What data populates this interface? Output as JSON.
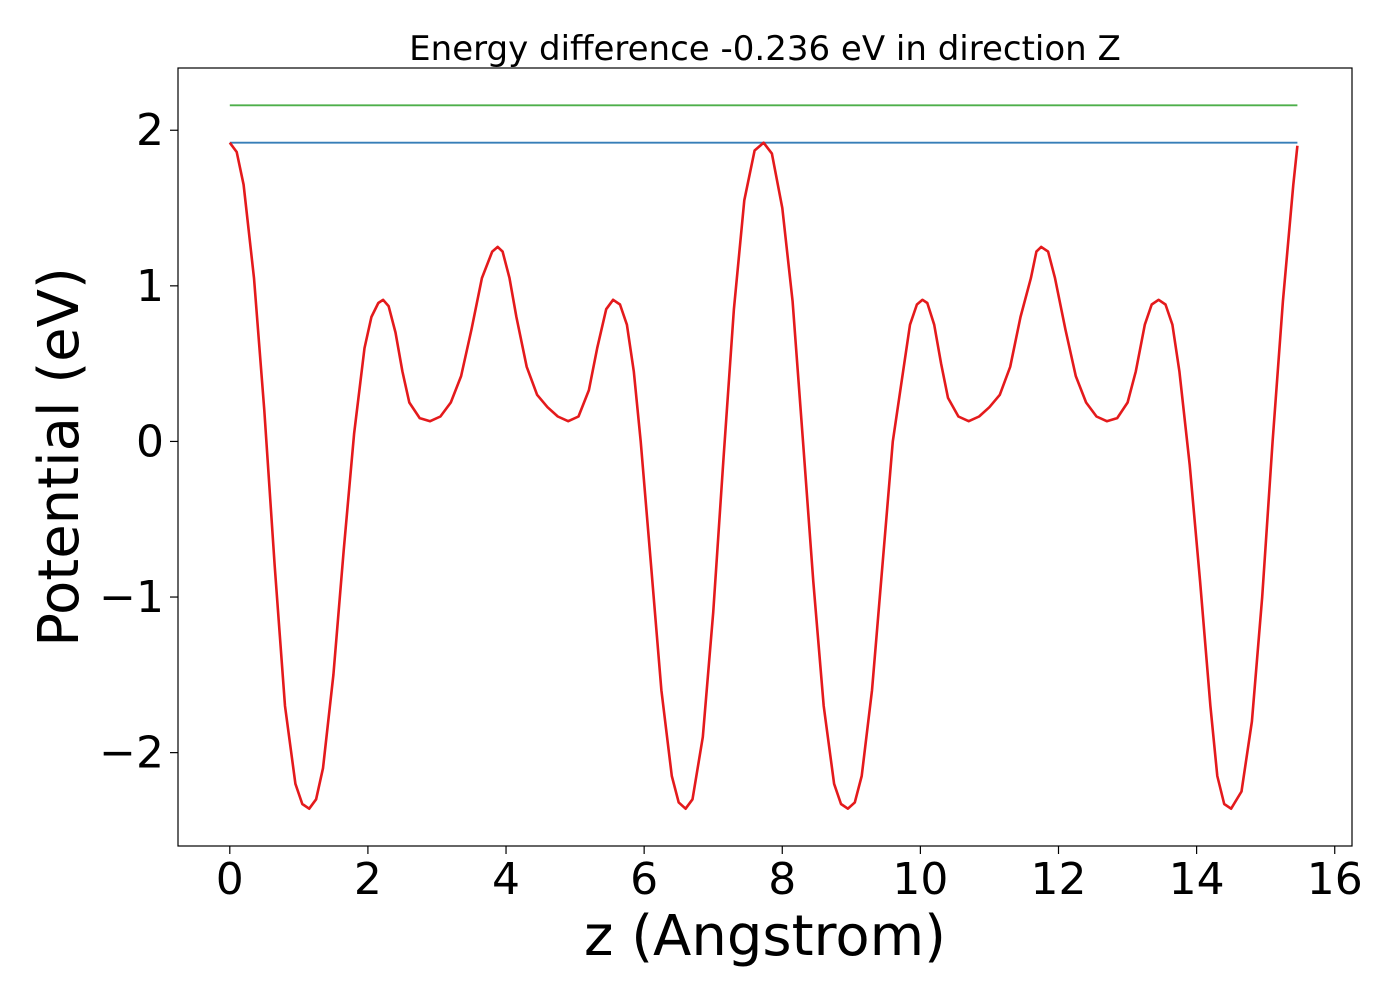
{
  "chart_data": {
    "type": "line",
    "title": "Energy difference -0.236 eV in direction Z",
    "xlabel": "z (Angstrom)",
    "ylabel": "Potential (eV)",
    "xlim": [
      -0.75,
      16.25
    ],
    "ylim": [
      -2.6,
      2.4
    ],
    "xticks": [
      0,
      2,
      4,
      6,
      8,
      10,
      12,
      14,
      16
    ],
    "xtick_labels": [
      "0",
      "2",
      "4",
      "6",
      "8",
      "10",
      "12",
      "14",
      "16"
    ],
    "yticks": [
      -2,
      -1,
      0,
      1,
      2
    ],
    "ytick_labels": [
      "−2",
      "−1",
      "0",
      "1",
      "2"
    ],
    "grid": false,
    "series": [
      {
        "color": "#4daf4a",
        "x": [
          0,
          15.46
        ],
        "y": [
          2.16,
          2.16
        ]
      },
      {
        "color": "#377eb8",
        "x": [
          0,
          15.46
        ],
        "y": [
          1.92,
          1.92
        ]
      },
      {
        "color": "#e41a1c",
        "x": [
          0.0,
          0.1,
          0.2,
          0.35,
          0.5,
          0.65,
          0.8,
          0.95,
          1.05,
          1.15,
          1.25,
          1.35,
          1.5,
          1.65,
          1.8,
          1.95,
          2.05,
          2.15,
          2.22,
          2.3,
          2.4,
          2.5,
          2.6,
          2.75,
          2.9,
          3.05,
          3.2,
          3.35,
          3.5,
          3.65,
          3.8,
          3.88,
          3.95,
          4.05,
          4.15,
          4.3,
          4.45,
          4.6,
          4.75,
          4.9,
          5.05,
          5.2,
          5.32,
          5.45,
          5.55,
          5.65,
          5.75,
          5.85,
          5.95,
          6.1,
          6.25,
          6.4,
          6.5,
          6.6,
          6.7,
          6.85,
          7.0,
          7.15,
          7.3,
          7.45,
          7.6,
          7.73,
          7.85,
          8.0,
          8.15,
          8.3,
          8.45,
          8.6,
          8.75,
          8.85,
          8.95,
          9.05,
          9.15,
          9.3,
          9.45,
          9.6,
          9.75,
          9.85,
          9.95,
          10.03,
          10.1,
          10.2,
          10.3,
          10.4,
          10.55,
          10.7,
          10.85,
          11.0,
          11.15,
          11.3,
          11.45,
          11.6,
          11.68,
          11.75,
          11.85,
          11.95,
          12.1,
          12.25,
          12.4,
          12.55,
          12.7,
          12.85,
          13.0,
          13.12,
          13.25,
          13.35,
          13.45,
          13.55,
          13.65,
          13.75,
          13.9,
          14.05,
          14.2,
          14.3,
          14.4,
          14.5,
          14.65,
          14.8,
          14.95,
          15.1,
          15.25,
          15.4,
          15.46
        ],
        "y": [
          1.92,
          1.86,
          1.65,
          1.05,
          0.2,
          -0.8,
          -1.7,
          -2.2,
          -2.33,
          -2.36,
          -2.3,
          -2.1,
          -1.5,
          -0.7,
          0.05,
          0.6,
          0.8,
          0.89,
          0.91,
          0.87,
          0.7,
          0.45,
          0.25,
          0.15,
          0.13,
          0.16,
          0.25,
          0.42,
          0.72,
          1.05,
          1.22,
          1.25,
          1.22,
          1.05,
          0.8,
          0.48,
          0.3,
          0.22,
          0.16,
          0.13,
          0.16,
          0.33,
          0.6,
          0.85,
          0.91,
          0.88,
          0.75,
          0.45,
          0.0,
          -0.8,
          -1.6,
          -2.15,
          -2.32,
          -2.36,
          -2.3,
          -1.9,
          -1.1,
          -0.1,
          0.85,
          1.55,
          1.87,
          1.92,
          1.85,
          1.5,
          0.9,
          0.0,
          -0.9,
          -1.7,
          -2.2,
          -2.33,
          -2.36,
          -2.32,
          -2.15,
          -1.6,
          -0.8,
          0.0,
          0.45,
          0.75,
          0.88,
          0.91,
          0.89,
          0.75,
          0.5,
          0.28,
          0.16,
          0.13,
          0.16,
          0.22,
          0.3,
          0.48,
          0.8,
          1.05,
          1.22,
          1.25,
          1.22,
          1.05,
          0.72,
          0.42,
          0.25,
          0.16,
          0.13,
          0.15,
          0.25,
          0.45,
          0.75,
          0.88,
          0.91,
          0.88,
          0.75,
          0.45,
          -0.15,
          -0.9,
          -1.7,
          -2.15,
          -2.33,
          -2.36,
          -2.25,
          -1.8,
          -1.0,
          0.0,
          0.9,
          1.65,
          1.9
        ]
      }
    ]
  }
}
